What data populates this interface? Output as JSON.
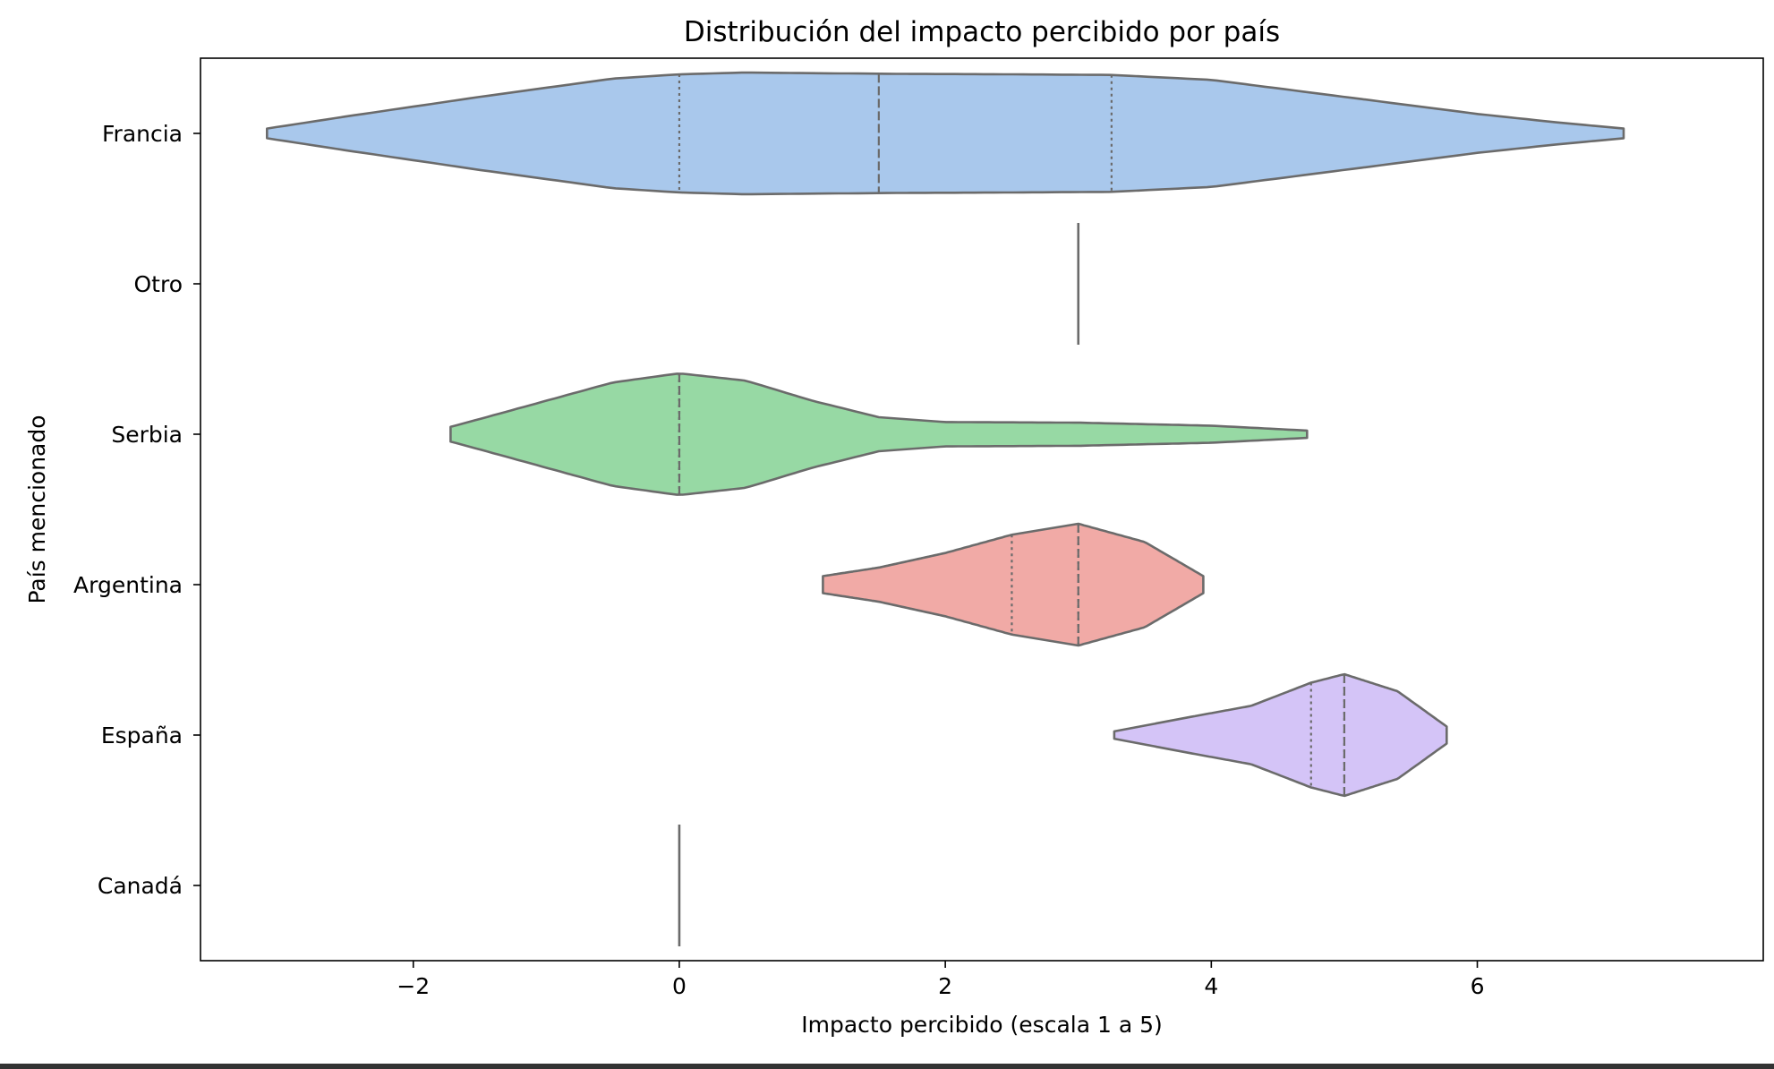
{
  "chart_data": {
    "type": "violin",
    "orientation": "horizontal",
    "title": "Distribución del impacto percibido por país",
    "xlabel": "Impacto percibido (escala 1 a 5)",
    "ylabel": "País mencionado",
    "xlim": [
      -3.6,
      8.15
    ],
    "xticks": [
      -2,
      0,
      2,
      4,
      6
    ],
    "xtick_labels": [
      "−2",
      "0",
      "2",
      "4",
      "6"
    ],
    "grid": false,
    "legend": false,
    "categories": [
      "Francia",
      "Otro",
      "Serbia",
      "Argentina",
      "España",
      "Canadá"
    ],
    "series": [
      {
        "category": "Francia",
        "color": "#a9c8ec",
        "range": [
          -3.1,
          7.1
        ],
        "quartiles": [
          0,
          1.5,
          3.25
        ],
        "density": [
          [
            -3.1,
            0.08
          ],
          [
            -2.5,
            0.28
          ],
          [
            -1.5,
            0.6
          ],
          [
            -0.5,
            0.9
          ],
          [
            0,
            0.97
          ],
          [
            0.5,
            1.0
          ],
          [
            1.5,
            0.98
          ],
          [
            2.5,
            0.97
          ],
          [
            3.25,
            0.96
          ],
          [
            4.0,
            0.88
          ],
          [
            5.0,
            0.6
          ],
          [
            6.0,
            0.32
          ],
          [
            6.6,
            0.18
          ],
          [
            7.1,
            0.08
          ]
        ]
      },
      {
        "category": "Otro",
        "color": "#6b6b6b",
        "single_value": 3
      },
      {
        "category": "Serbia",
        "color": "#97d9a4",
        "range": [
          -1.72,
          4.72
        ],
        "quartiles": [
          0,
          0,
          0
        ],
        "density": [
          [
            -1.72,
            0.12
          ],
          [
            -1.5,
            0.25
          ],
          [
            -1.0,
            0.55
          ],
          [
            -0.5,
            0.85
          ],
          [
            0,
            1.0
          ],
          [
            0.5,
            0.88
          ],
          [
            1.0,
            0.55
          ],
          [
            1.5,
            0.28
          ],
          [
            2.0,
            0.2
          ],
          [
            3.0,
            0.19
          ],
          [
            4.0,
            0.14
          ],
          [
            4.72,
            0.06
          ]
        ]
      },
      {
        "category": "Argentina",
        "color": "#f1aaa6",
        "range": [
          1.08,
          3.94
        ],
        "quartiles": [
          2.5,
          3,
          3
        ]
      },
      {
        "category": "España",
        "color": "#d4c4f7",
        "range": [
          3.27,
          5.77
        ],
        "quartiles": [
          4.75,
          5,
          5
        ]
      },
      {
        "category": "Canadá",
        "color": "#6b6b6b",
        "single_value": 0
      }
    ],
    "densities_extra": {
      "Argentina": [
        [
          1.08,
          0.14
        ],
        [
          1.5,
          0.28
        ],
        [
          2.0,
          0.52
        ],
        [
          2.5,
          0.82
        ],
        [
          3.0,
          1.0
        ],
        [
          3.5,
          0.7
        ],
        [
          3.94,
          0.14
        ]
      ],
      "España": [
        [
          3.27,
          0.06
        ],
        [
          3.8,
          0.28
        ],
        [
          4.3,
          0.48
        ],
        [
          4.75,
          0.86
        ],
        [
          5.0,
          1.0
        ],
        [
          5.4,
          0.72
        ],
        [
          5.77,
          0.14
        ]
      ]
    }
  }
}
